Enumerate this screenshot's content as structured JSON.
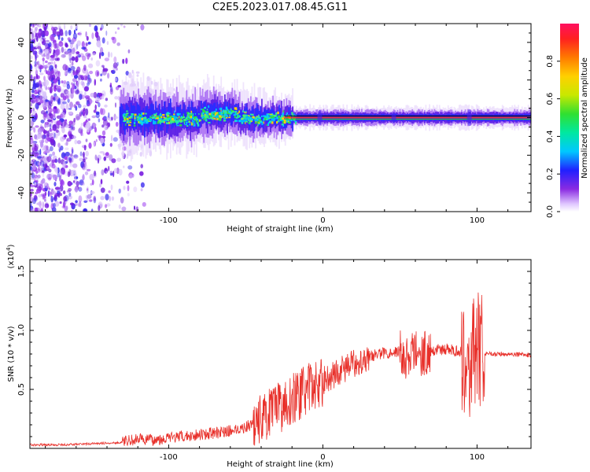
{
  "title": "C2E5.2023.017.08.45.G11",
  "colors": {
    "snr_line": "#e8302a",
    "spectrogram_center": "#e8302a",
    "background": "#ffffff"
  },
  "chart_data": [
    {
      "type": "heatmap",
      "title": "",
      "xlabel": "Height of straight line (km)",
      "ylabel": "Frequency (Hz)",
      "xlim": [
        -190,
        135
      ],
      "ylim": [
        -50,
        50
      ],
      "x_ticks": [
        -100,
        0,
        100
      ],
      "x_tick_labels": [
        "-100",
        "0",
        "100"
      ],
      "y_ticks": [
        -40,
        -20,
        0,
        20,
        40
      ],
      "y_tick_labels": [
        "-40",
        "-20",
        "0",
        "20",
        "40"
      ],
      "colorbar": {
        "label": "Normalized spectral amplitude",
        "range": [
          0,
          1
        ],
        "ticks": [
          0,
          0.2,
          0.4,
          0.6,
          0.8
        ],
        "tick_labels": [
          "0.0",
          "0.2",
          "0.4",
          "0.6",
          "0.8"
        ]
      },
      "description_points": {
        "carrier_frequency_hz": 0,
        "noise_region_x": [
          -190,
          -120
        ],
        "signal_band_x": [
          -130,
          135
        ]
      }
    },
    {
      "type": "line",
      "title": "",
      "xlabel": "Height of straight line (km)",
      "ylabel": "SNR (10 * v/v)",
      "y_multiplier_label": "(x10",
      "y_multiplier_exp": "4",
      "xlim": [
        -190,
        135
      ],
      "ylim": [
        0,
        1.6
      ],
      "x_ticks": [
        -100,
        0,
        100
      ],
      "x_tick_labels": [
        "-100",
        "0",
        "100"
      ],
      "y_ticks": [
        0.5,
        1.0,
        1.5
      ],
      "y_tick_labels": [
        "0.5",
        "1.0",
        "1.5"
      ],
      "x": [
        -190,
        -170,
        -150,
        -130,
        -120,
        -110,
        -100,
        -90,
        -80,
        -70,
        -60,
        -50,
        -40,
        -30,
        -20,
        -10,
        0,
        10,
        20,
        30,
        40,
        50,
        55,
        60,
        65,
        70,
        80,
        90,
        95,
        100,
        105,
        110,
        120,
        135
      ],
      "values": [
        0.03,
        0.03,
        0.04,
        0.05,
        0.08,
        0.07,
        0.09,
        0.1,
        0.12,
        0.13,
        0.15,
        0.18,
        0.25,
        0.33,
        0.42,
        0.5,
        0.57,
        0.65,
        0.72,
        0.78,
        0.81,
        0.82,
        0.75,
        0.83,
        0.8,
        0.83,
        0.84,
        0.82,
        0.7,
        0.85,
        0.8,
        0.8,
        0.8,
        0.79
      ]
    }
  ]
}
